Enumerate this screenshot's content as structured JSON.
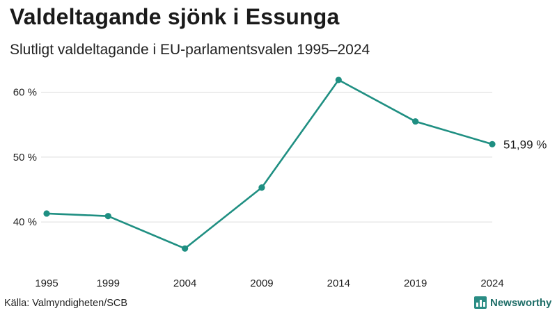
{
  "title": "Valdeltagande sjönk i Essunga",
  "subtitle": "Slutligt valdeltagande i EU-parlamentsvalen 1995–2024",
  "source": "Källa: Valmyndigheten/SCB",
  "brand": {
    "name": "Newsworthy",
    "icon": "bar-chart-icon"
  },
  "colors": {
    "line": "#1f8f82",
    "grid": "#dcdcdc"
  },
  "chart_data": {
    "type": "line",
    "x": [
      1995,
      1999,
      2004,
      2009,
      2014,
      2019,
      2024
    ],
    "x_tick_labels": [
      "1995",
      "1999",
      "2004",
      "2009",
      "2014",
      "2019",
      "2024"
    ],
    "series": [
      {
        "values": [
          41.3,
          40.9,
          35.9,
          45.3,
          61.9,
          55.5,
          51.99
        ]
      }
    ],
    "y_ticks": [
      40,
      50,
      60
    ],
    "y_tick_labels": [
      "40 %",
      "50 %",
      "60 %"
    ],
    "ylim": [
      34,
      63.5
    ],
    "grid": true,
    "end_label": "51,99 %"
  }
}
